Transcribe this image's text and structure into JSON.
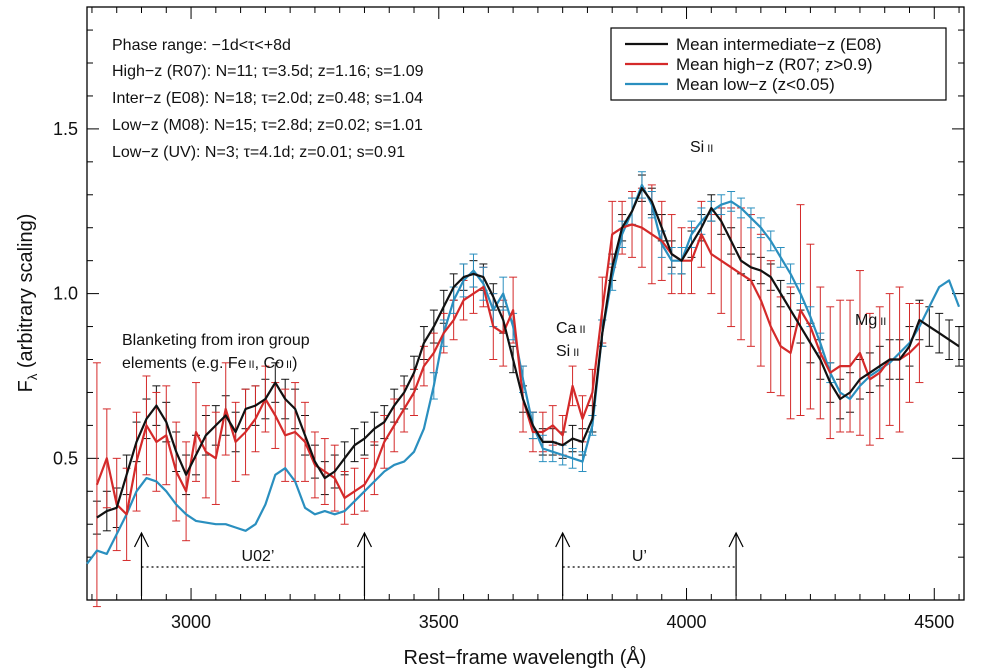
{
  "chart_data": {
    "type": "line",
    "title": "",
    "xlabel": "Rest−frame wavelength (Å)",
    "ylabel": "Fλ (arbitrary scaling)",
    "ylabel_main": "F",
    "ylabel_sub": "λ",
    "ylabel_rest": " (arbitrary scaling)",
    "xlim": [
      2790,
      4560
    ],
    "ylim": [
      0.07,
      1.87
    ],
    "xticks": [
      3000,
      3500,
      4000,
      4500
    ],
    "yticks": [
      0.5,
      1.0,
      1.5
    ],
    "ytick_labels": [
      "0.5",
      "1.0",
      "1.5"
    ],
    "grid": false,
    "legend_position": "top-right",
    "info_lines": [
      "Phase range: −1d<τ<+8d",
      "High−z (R07): N=11; τ=3.5d; z=1.16; s=1.09",
      "Inter−z (E08): N=18; τ=2.0d; z=0.48; s=1.04",
      "Low−z (M08): N=15; τ=2.8d; z=0.02; s=1.01",
      "Low−z (UV): N=3; τ=4.1d; z=0.01; s=0.91"
    ],
    "series": [
      {
        "name": "Mean intermediate−z (E08)",
        "color": "#111111",
        "x": [
          2810,
          2830,
          2850,
          2870,
          2890,
          2910,
          2930,
          2950,
          2970,
          2990,
          3010,
          3030,
          3050,
          3070,
          3090,
          3110,
          3130,
          3150,
          3170,
          3190,
          3210,
          3230,
          3250,
          3270,
          3290,
          3310,
          3330,
          3350,
          3370,
          3390,
          3410,
          3430,
          3450,
          3470,
          3490,
          3510,
          3530,
          3550,
          3570,
          3590,
          3610,
          3630,
          3650,
          3670,
          3690,
          3710,
          3730,
          3750,
          3770,
          3790,
          3810,
          3830,
          3850,
          3870,
          3890,
          3910,
          3930,
          3950,
          3970,
          3990,
          4010,
          4030,
          4050,
          4070,
          4090,
          4110,
          4130,
          4150,
          4170,
          4190,
          4210,
          4230,
          4250,
          4270,
          4290,
          4310,
          4330,
          4350,
          4370,
          4390,
          4410,
          4430,
          4450,
          4470,
          4490,
          4510,
          4530,
          4550
        ],
        "y": [
          0.32,
          0.34,
          0.35,
          0.45,
          0.55,
          0.62,
          0.66,
          0.61,
          0.52,
          0.45,
          0.51,
          0.57,
          0.6,
          0.63,
          0.58,
          0.65,
          0.66,
          0.68,
          0.73,
          0.68,
          0.65,
          0.57,
          0.49,
          0.44,
          0.46,
          0.5,
          0.54,
          0.56,
          0.59,
          0.61,
          0.66,
          0.7,
          0.76,
          0.85,
          0.9,
          0.96,
          1.02,
          1.05,
          1.06,
          1.05,
          0.99,
          0.92,
          0.8,
          0.68,
          0.6,
          0.55,
          0.55,
          0.54,
          0.56,
          0.55,
          0.62,
          0.88,
          1.08,
          1.2,
          1.25,
          1.32,
          1.28,
          1.2,
          1.12,
          1.1,
          1.15,
          1.2,
          1.26,
          1.22,
          1.16,
          1.1,
          1.08,
          1.07,
          1.05,
          1.0,
          0.95,
          0.9,
          0.85,
          0.8,
          0.73,
          0.68,
          0.7,
          0.74,
          0.76,
          0.78,
          0.8,
          0.8,
          0.84,
          0.92,
          0.9,
          0.88,
          0.86,
          0.84
        ]
      },
      {
        "name": "Mean high−z (R07; z>0.9)",
        "color": "#d42a2a",
        "x": [
          2810,
          2830,
          2850,
          2870,
          2890,
          2910,
          2930,
          2950,
          2970,
          2990,
          3010,
          3030,
          3050,
          3070,
          3090,
          3110,
          3130,
          3150,
          3170,
          3190,
          3210,
          3230,
          3250,
          3270,
          3290,
          3310,
          3330,
          3350,
          3370,
          3390,
          3410,
          3430,
          3450,
          3470,
          3490,
          3510,
          3530,
          3550,
          3570,
          3590,
          3610,
          3630,
          3650,
          3670,
          3690,
          3710,
          3730,
          3750,
          3770,
          3790,
          3810,
          3830,
          3850,
          3870,
          3890,
          3910,
          3930,
          3950,
          3970,
          3990,
          4010,
          4030,
          4050,
          4070,
          4090,
          4110,
          4130,
          4150,
          4170,
          4190,
          4210,
          4230,
          4250,
          4270,
          4290,
          4310,
          4330,
          4350,
          4370,
          4390,
          4410,
          4430,
          4450,
          4470
        ],
        "y": [
          0.42,
          0.5,
          0.36,
          0.33,
          0.49,
          0.6,
          0.55,
          0.57,
          0.46,
          0.4,
          0.58,
          0.52,
          0.5,
          0.65,
          0.55,
          0.58,
          0.62,
          0.68,
          0.63,
          0.57,
          0.58,
          0.55,
          0.48,
          0.46,
          0.44,
          0.38,
          0.4,
          0.42,
          0.47,
          0.55,
          0.6,
          0.65,
          0.7,
          0.78,
          0.82,
          0.88,
          0.92,
          0.98,
          1.0,
          1.02,
          0.9,
          0.88,
          0.95,
          0.68,
          0.58,
          0.58,
          0.6,
          0.57,
          0.72,
          0.62,
          0.7,
          0.95,
          1.18,
          1.2,
          1.21,
          1.2,
          1.18,
          1.16,
          1.12,
          1.1,
          1.1,
          1.18,
          1.12,
          1.1,
          1.08,
          1.06,
          1.04,
          0.98,
          0.9,
          0.84,
          0.82,
          0.95,
          0.9,
          0.82,
          0.76,
          0.78,
          0.78,
          0.82,
          0.74,
          0.76,
          0.8,
          0.8,
          0.82,
          0.85
        ]
      },
      {
        "name": "Mean low−z (z<0.05)",
        "color": "#2a8fbf",
        "x": [
          2790,
          2810,
          2830,
          2850,
          2870,
          2890,
          2910,
          2930,
          2950,
          2970,
          2990,
          3010,
          3030,
          3050,
          3070,
          3090,
          3110,
          3130,
          3150,
          3170,
          3190,
          3210,
          3230,
          3250,
          3270,
          3290,
          3310,
          3330,
          3350,
          3370,
          3390,
          3410,
          3430,
          3450,
          3470,
          3490,
          3510,
          3530,
          3550,
          3570,
          3590,
          3610,
          3630,
          3650,
          3670,
          3690,
          3710,
          3730,
          3750,
          3770,
          3790,
          3810,
          3830,
          3850,
          3870,
          3890,
          3910,
          3930,
          3950,
          3970,
          3990,
          4010,
          4030,
          4050,
          4070,
          4090,
          4110,
          4130,
          4150,
          4170,
          4190,
          4210,
          4230,
          4250,
          4270,
          4290,
          4310,
          4330,
          4350,
          4370,
          4390,
          4410,
          4430,
          4450,
          4470,
          4490,
          4510,
          4530,
          4550
        ],
        "y": [
          0.18,
          0.22,
          0.21,
          0.27,
          0.33,
          0.4,
          0.44,
          0.43,
          0.4,
          0.36,
          0.33,
          0.31,
          0.305,
          0.3,
          0.3,
          0.29,
          0.28,
          0.3,
          0.36,
          0.45,
          0.47,
          0.43,
          0.35,
          0.33,
          0.34,
          0.33,
          0.34,
          0.37,
          0.4,
          0.43,
          0.46,
          0.48,
          0.49,
          0.52,
          0.59,
          0.72,
          0.88,
          0.98,
          1.04,
          1.07,
          1.03,
          0.95,
          1.0,
          0.9,
          0.74,
          0.6,
          0.53,
          0.52,
          0.51,
          0.5,
          0.49,
          0.6,
          0.88,
          1.05,
          1.18,
          1.25,
          1.33,
          1.27,
          1.15,
          1.1,
          1.1,
          1.18,
          1.22,
          1.25,
          1.27,
          1.28,
          1.26,
          1.23,
          1.2,
          1.16,
          1.11,
          1.06,
          1.0,
          0.93,
          0.85,
          0.76,
          0.7,
          0.68,
          0.72,
          0.75,
          0.77,
          0.79,
          0.82,
          0.85,
          0.9,
          0.96,
          1.02,
          1.04,
          0.96
        ]
      }
    ],
    "errorbars": [
      {
        "series": 0,
        "err": [
          0.05,
          0.06,
          0.06,
          0.06,
          0.06,
          0.06,
          0.06,
          0.06,
          0.06,
          0.06,
          0.06,
          0.06,
          0.06,
          0.06,
          0.06,
          0.06,
          0.06,
          0.06,
          0.06,
          0.06,
          0.06,
          0.06,
          0.05,
          0.05,
          0.05,
          0.05,
          0.05,
          0.05,
          0.05,
          0.05,
          0.05,
          0.05,
          0.05,
          0.05,
          0.05,
          0.05,
          0.04,
          0.04,
          0.04,
          0.04,
          0.04,
          0.04,
          0.04,
          0.04,
          0.04,
          0.04,
          0.04,
          0.04,
          0.04,
          0.04,
          0.04,
          0.04,
          0.04,
          0.04,
          0.04,
          0.04,
          0.04,
          0.04,
          0.04,
          0.04,
          0.04,
          0.04,
          0.04,
          0.04,
          0.04,
          0.04,
          0.04,
          0.04,
          0.04,
          0.04,
          0.05,
          0.05,
          0.06,
          0.06,
          0.06,
          0.06,
          0.06,
          0.06,
          0.06,
          0.06,
          0.06,
          0.06,
          0.06,
          0.06,
          0.06,
          0.06,
          0.06,
          0.06
        ]
      },
      {
        "series": 1,
        "err": [
          0.37,
          0.15,
          0.14,
          0.14,
          0.15,
          0.15,
          0.15,
          0.15,
          0.15,
          0.15,
          0.15,
          0.14,
          0.14,
          0.14,
          0.12,
          0.13,
          0.1,
          0.1,
          0.1,
          0.14,
          0.15,
          0.12,
          0.1,
          0.1,
          0.1,
          0.08,
          0.07,
          0.08,
          0.08,
          0.08,
          0.08,
          0.07,
          0.07,
          0.06,
          0.06,
          0.06,
          0.06,
          0.06,
          0.06,
          0.06,
          0.1,
          0.1,
          0.1,
          0.1,
          0.06,
          0.06,
          0.06,
          0.06,
          0.06,
          0.07,
          0.07,
          0.1,
          0.1,
          0.08,
          0.1,
          0.12,
          0.15,
          0.12,
          0.12,
          0.1,
          0.1,
          0.1,
          0.12,
          0.16,
          0.18,
          0.2,
          0.2,
          0.2,
          0.2,
          0.15,
          0.2,
          0.32,
          0.25,
          0.2,
          0.2,
          0.2,
          0.2,
          0.25,
          0.2,
          0.2,
          0.2,
          0.22,
          0.15,
          0.12
        ]
      },
      {
        "series": 2,
        "from": 35,
        "to": 75,
        "err": [
          0.04,
          0.04,
          0.04,
          0.05,
          0.05,
          0.05,
          0.05,
          0.05,
          0.04,
          0.04,
          0.04,
          0.04,
          0.03,
          0.03,
          0.03,
          0.03,
          0.03,
          0.04,
          0.04,
          0.04,
          0.04,
          0.04,
          0.04,
          0.04,
          0.04,
          0.04,
          0.04,
          0.04,
          0.03,
          0.03,
          0.03,
          0.03,
          0.03,
          0.03,
          0.03,
          0.03,
          0.03,
          0.03,
          0.03,
          0.03,
          0.03
        ]
      }
    ],
    "annotations": {
      "blanketing_line1": "Blanketing from iron group",
      "blanketing_line2_a": "elements (e.g. Fe",
      "blanketing_line2_b": "II",
      "blanketing_line2_c": ", Co",
      "blanketing_line2_d": "II",
      "blanketing_line2_e": ")",
      "ca_main": "Ca",
      "ca_ion": "II",
      "si_main": "Si",
      "si_ion": "II",
      "si2_main": "Si",
      "si2_ion": "II",
      "mg_main": "Mg",
      "mg_ion": "II"
    },
    "filters": [
      {
        "label": "U02’",
        "x_start": 2900,
        "x_end": 3350
      },
      {
        "label": "U’",
        "x_start": 3750,
        "x_end": 4100
      }
    ]
  }
}
